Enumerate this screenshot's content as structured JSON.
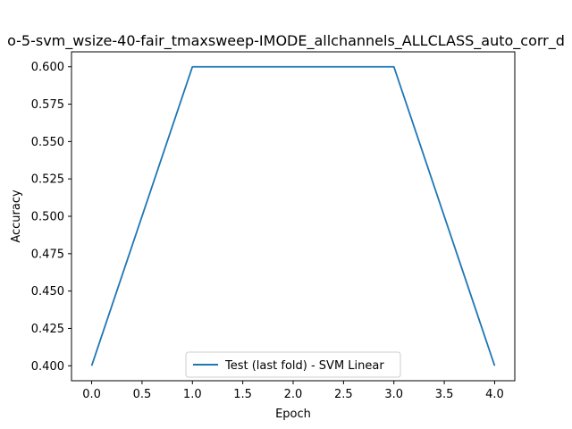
{
  "chart_data": {
    "type": "line",
    "title": "o-5-svm_wsize-40-fair_tmaxsweep-IMODE_allchannels_ALLCLASS_auto_corr_d",
    "xlabel": "Epoch",
    "ylabel": "Accuracy",
    "xlim": [
      -0.2,
      4.2
    ],
    "ylim": [
      0.39,
      0.61
    ],
    "x_ticks": [
      "0.0",
      "0.5",
      "1.0",
      "1.5",
      "2.0",
      "2.5",
      "3.0",
      "3.5",
      "4.0"
    ],
    "y_ticks": [
      "0.400",
      "0.425",
      "0.450",
      "0.475",
      "0.500",
      "0.525",
      "0.550",
      "0.575",
      "0.600"
    ],
    "x_tick_values": [
      0.0,
      0.5,
      1.0,
      1.5,
      2.0,
      2.5,
      3.0,
      3.5,
      4.0
    ],
    "y_tick_values": [
      0.4,
      0.425,
      0.45,
      0.475,
      0.5,
      0.525,
      0.55,
      0.575,
      0.6
    ],
    "series": [
      {
        "name": "Test (last fold) - SVM Linear",
        "color": "#1f77b4",
        "x": [
          0,
          1,
          2,
          3,
          4
        ],
        "values": [
          0.4,
          0.6,
          0.6,
          0.6,
          0.4
        ]
      }
    ],
    "legend": "lower center",
    "grid": false
  }
}
